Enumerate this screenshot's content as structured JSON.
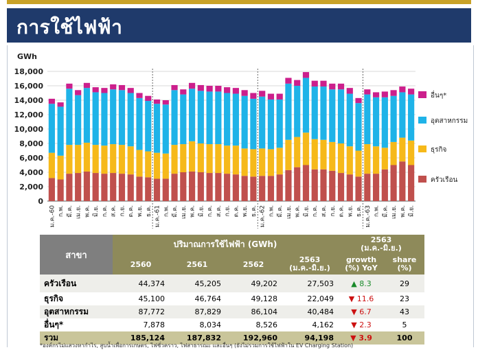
{
  "title": "การใช้ไฟฟ้า",
  "chart_data": {
    "type": "bar",
    "stacked": true,
    "ylabel": "GWh",
    "ylim": [
      0,
      18000
    ],
    "yticks": [
      "0",
      "2,000",
      "4,000",
      "6,000",
      "8,000",
      "10,000",
      "12,000",
      "14,000",
      "16,000",
      "18,000"
    ],
    "grid": true,
    "legend_position": "right",
    "categories": [
      "ม.ค.-60",
      "ก.พ.",
      "มี.ค.",
      "เม.ย.",
      "พ.ค.",
      "มิ.ย.",
      "ก.ค.",
      "ส.ค.",
      "ก.ย.",
      "ต.ค.",
      "พ.ย.",
      "ธ.ค.",
      "ม.ค.-61",
      "ก.พ.",
      "มี.ค.",
      "เม.ย.",
      "พ.ค.",
      "มิ.ย.",
      "ก.ค.",
      "ส.ค.",
      "ก.ย.",
      "ต.ค.",
      "พ.ย.",
      "ธ.ค.",
      "ม.ค.-62",
      "ก.พ.",
      "มี.ค.",
      "เม.ย.",
      "พ.ค.",
      "มิ.ย.",
      "ก.ค.",
      "ส.ค.",
      "ก.ย.",
      "ต.ค.",
      "พ.ย.",
      "ธ.ค.",
      "ม.ค.-63",
      "ก.พ.",
      "มี.ค.",
      "เม.ย.",
      "พ.ค.",
      "มิ.ย."
    ],
    "year_separators_after": [
      11,
      23,
      35
    ],
    "series": [
      {
        "name": "ครัวเรือน",
        "color": "#c0504d",
        "values": [
          3200,
          3000,
          3800,
          3900,
          4100,
          3900,
          3800,
          3900,
          3800,
          3700,
          3400,
          3300,
          3100,
          3100,
          3800,
          4000,
          4100,
          4000,
          3900,
          3900,
          3800,
          3700,
          3500,
          3400,
          3500,
          3500,
          3700,
          4300,
          4700,
          5000,
          4400,
          4400,
          4200,
          3900,
          3700,
          3400,
          3800,
          3800,
          4400,
          5000,
          5500,
          5000
        ]
      },
      {
        "name": "ธุรกิจ",
        "color": "#f6b91a",
        "values": [
          3500,
          3300,
          4000,
          3900,
          4000,
          3900,
          3900,
          4000,
          4000,
          3900,
          3700,
          3600,
          3600,
          3500,
          4000,
          3900,
          4200,
          4000,
          4000,
          4000,
          3900,
          4000,
          3800,
          3800,
          3800,
          3700,
          3700,
          4200,
          4200,
          4500,
          4200,
          4100,
          4000,
          4100,
          3900,
          3600,
          4100,
          3800,
          3000,
          3200,
          3300,
          3400
        ]
      },
      {
        "name": "อุตสาหกรรม",
        "color": "#1fb3e8",
        "values": [
          6800,
          6800,
          7800,
          6900,
          7600,
          7300,
          7300,
          7600,
          7600,
          7400,
          7200,
          7000,
          6800,
          6800,
          7600,
          6900,
          7300,
          7300,
          7300,
          7300,
          7300,
          7200,
          7300,
          7000,
          7200,
          6900,
          6700,
          7800,
          7100,
          7600,
          7300,
          7400,
          7300,
          7500,
          7300,
          6600,
          6900,
          6800,
          7000,
          6400,
          6300,
          6400
        ]
      },
      {
        "name": "อื่นๆ*",
        "color": "#cc1f8c",
        "values": [
          700,
          600,
          700,
          700,
          700,
          700,
          700,
          700,
          700,
          700,
          700,
          700,
          600,
          600,
          700,
          700,
          800,
          800,
          800,
          800,
          800,
          800,
          800,
          800,
          800,
          800,
          800,
          800,
          800,
          800,
          800,
          800,
          800,
          800,
          800,
          700,
          700,
          700,
          800,
          800,
          800,
          800
        ]
      }
    ]
  },
  "table": {
    "col_branch": "สาขา",
    "group_header": "ปริมาณการใช้ไฟฟ้า (GWh)",
    "years": [
      "2560",
      "2561",
      "2562"
    ],
    "col_2563_year": "2563",
    "col_2563_range": "(ม.ค.-มิ.ย.)",
    "right_group_year": "2563",
    "right_group_range": "(ม.ค.-มิ.ย.)",
    "col_growth": "growth",
    "col_growth_unit": "(%) YoY",
    "col_share": "share",
    "col_share_unit": "(%)",
    "rows": [
      {
        "name": "ครัวเรือน",
        "v2560": "44,374",
        "v2561": "45,205",
        "v2562": "49,202",
        "v2563": "27,503",
        "arrow": "▲",
        "growth": "8.3",
        "dir": "up",
        "share": "29"
      },
      {
        "name": "ธุรกิจ",
        "v2560": "45,100",
        "v2561": "46,764",
        "v2562": "49,128",
        "v2563": "22,049",
        "arrow": "▼",
        "growth": "11.6",
        "dir": "down",
        "share": "23"
      },
      {
        "name": "อุตสาหกรรม",
        "v2560": "87,772",
        "v2561": "87,829",
        "v2562": "86,104",
        "v2563": "40,484",
        "arrow": "▼",
        "growth": "6.7",
        "dir": "down",
        "share": "43"
      },
      {
        "name": "อื่นๆ*",
        "v2560": "7,878",
        "v2561": "8,034",
        "v2562": "8,526",
        "v2563": "4,162",
        "arrow": "▼",
        "growth": "2.3",
        "dir": "down",
        "share": "5"
      }
    ],
    "total": {
      "name": "รวม",
      "v2560": "185,124",
      "v2561": "187,832",
      "v2562": "192,960",
      "v2563": "94,198",
      "arrow": "▼",
      "growth": "3.9",
      "share": "100"
    }
  },
  "footnote": "*องค์กรไม่แสวงหากำไร, สูบน้ำเพื่อการเกษตร, ไฟชั่วคราว, ไฟสาธารณะ และอื่นๆ (ยังไม่รวมการใช้ไฟฟ้าใน EV Charging Station)"
}
